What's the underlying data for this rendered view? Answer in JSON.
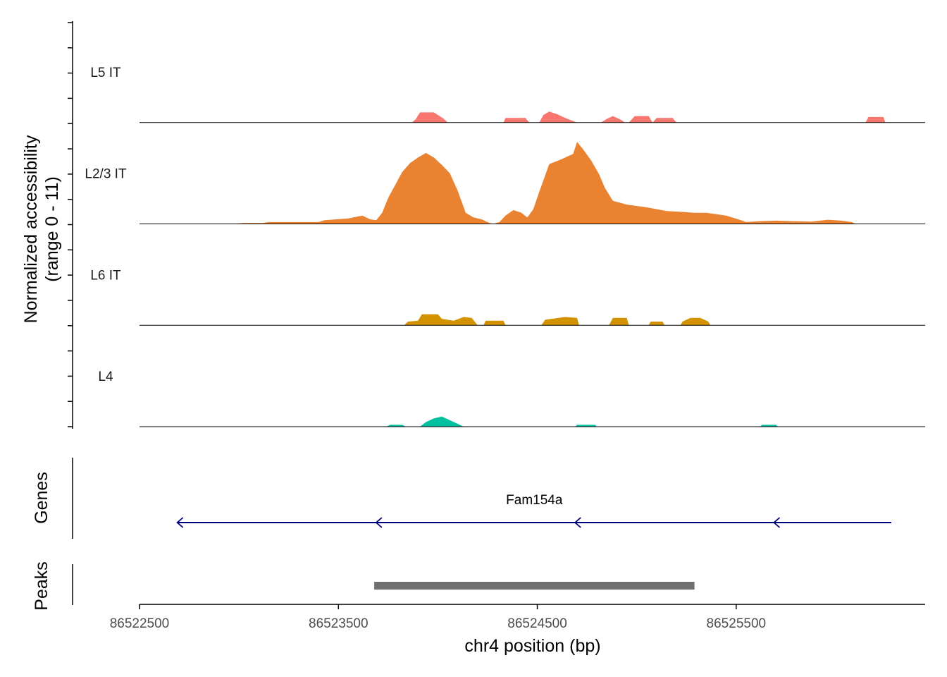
{
  "chart_data": {
    "type": "area",
    "y_axis_title_line1": "Normalized accessibility",
    "y_axis_title_line2": "(range 0 - 11)",
    "ylim": [
      0,
      11
    ],
    "x_axis_title": "chr4 position (bp)",
    "xlim": [
      86522500,
      86526450
    ],
    "x_ticks": [
      86522500,
      86523500,
      86524500,
      86525500
    ],
    "x_tick_labels": [
      "86522500",
      "86523500",
      "86524500",
      "86525500"
    ],
    "tracks": [
      {
        "name": "L5 IT",
        "color": "#F8766D",
        "points": [
          [
            86523870,
            0
          ],
          [
            86523890,
            0.4
          ],
          [
            86523910,
            1.1
          ],
          [
            86523980,
            1.1
          ],
          [
            86524030,
            0.4
          ],
          [
            86524050,
            0
          ],
          [
            86524330,
            0
          ],
          [
            86524340,
            0.5
          ],
          [
            86524440,
            0.5
          ],
          [
            86524460,
            0
          ],
          [
            86524510,
            0
          ],
          [
            86524530,
            0.8
          ],
          [
            86524560,
            1.2
          ],
          [
            86524600,
            0.9
          ],
          [
            86524640,
            0.5
          ],
          [
            86524700,
            0
          ],
          [
            86524820,
            0
          ],
          [
            86524850,
            0.4
          ],
          [
            86524880,
            0.7
          ],
          [
            86524920,
            0.3
          ],
          [
            86524940,
            0
          ],
          [
            86524960,
            0
          ],
          [
            86524990,
            0.7
          ],
          [
            86525060,
            0.7
          ],
          [
            86525080,
            0
          ],
          [
            86525080,
            0
          ],
          [
            86525100,
            0.5
          ],
          [
            86525180,
            0.5
          ],
          [
            86525200,
            0
          ],
          [
            86526150,
            0
          ],
          [
            86526165,
            0.6
          ],
          [
            86526240,
            0.6
          ],
          [
            86526250,
            0
          ]
        ]
      },
      {
        "name": "L2/3 IT",
        "color": "#EA8331",
        "points": [
          [
            86522970,
            0
          ],
          [
            86523020,
            0.1
          ],
          [
            86523120,
            0.1
          ],
          [
            86523150,
            0.2
          ],
          [
            86523400,
            0.2
          ],
          [
            86523430,
            0.4
          ],
          [
            86523550,
            0.6
          ],
          [
            86523620,
            0.9
          ],
          [
            86523660,
            0.5
          ],
          [
            86523690,
            0.4
          ],
          [
            86523720,
            1.2
          ],
          [
            86523750,
            2.8
          ],
          [
            86523780,
            4.0
          ],
          [
            86523820,
            5.6
          ],
          [
            86523860,
            6.6
          ],
          [
            86523900,
            7.2
          ],
          [
            86523940,
            7.7
          ],
          [
            86523980,
            7.2
          ],
          [
            86524020,
            6.4
          ],
          [
            86524060,
            5.5
          ],
          [
            86524100,
            3.6
          ],
          [
            86524140,
            1.2
          ],
          [
            86524180,
            0.7
          ],
          [
            86524220,
            0.5
          ],
          [
            86524260,
            0.1
          ],
          [
            86524280,
            0
          ],
          [
            86524310,
            0.2
          ],
          [
            86524340,
            0.9
          ],
          [
            86524380,
            1.5
          ],
          [
            86524420,
            1.2
          ],
          [
            86524450,
            0.7
          ],
          [
            86524480,
            1.6
          ],
          [
            86524510,
            3.5
          ],
          [
            86524560,
            6.5
          ],
          [
            86524620,
            7.0
          ],
          [
            86524680,
            7.6
          ],
          [
            86524700,
            8.9
          ],
          [
            86524730,
            8.1
          ],
          [
            86524770,
            6.9
          ],
          [
            86524810,
            5.4
          ],
          [
            86524840,
            3.9
          ],
          [
            86524880,
            2.5
          ],
          [
            86524950,
            2.1
          ],
          [
            86525050,
            1.8
          ],
          [
            86525150,
            1.4
          ],
          [
            86525230,
            1.3
          ],
          [
            86525290,
            1.2
          ],
          [
            86525350,
            1.2
          ],
          [
            86525450,
            0.9
          ],
          [
            86525510,
            0.5
          ],
          [
            86525550,
            0.2
          ],
          [
            86525620,
            0.3
          ],
          [
            86525700,
            0.35
          ],
          [
            86525780,
            0.3
          ],
          [
            86525880,
            0.25
          ],
          [
            86525960,
            0.45
          ],
          [
            86526030,
            0.35
          ],
          [
            86526080,
            0.2
          ],
          [
            86526100,
            0
          ]
        ]
      },
      {
        "name": "L6 IT",
        "color": "#D39200",
        "points": [
          [
            86523830,
            0
          ],
          [
            86523850,
            0.4
          ],
          [
            86523900,
            0.5
          ],
          [
            86523920,
            1.2
          ],
          [
            86524000,
            1.2
          ],
          [
            86524020,
            0.7
          ],
          [
            86524080,
            0.5
          ],
          [
            86524130,
            0.9
          ],
          [
            86524170,
            0.8
          ],
          [
            86524200,
            0
          ],
          [
            86524230,
            0
          ],
          [
            86524240,
            0.5
          ],
          [
            86524330,
            0.5
          ],
          [
            86524340,
            0
          ],
          [
            86524520,
            0
          ],
          [
            86524540,
            0.6
          ],
          [
            86524640,
            0.9
          ],
          [
            86524700,
            0.8
          ],
          [
            86524710,
            0
          ],
          [
            86524860,
            0
          ],
          [
            86524880,
            0.8
          ],
          [
            86524950,
            0.8
          ],
          [
            86524960,
            0
          ],
          [
            86525060,
            0
          ],
          [
            86525070,
            0.4
          ],
          [
            86525130,
            0.4
          ],
          [
            86525140,
            0
          ],
          [
            86525220,
            0
          ],
          [
            86525230,
            0.4
          ],
          [
            86525270,
            0.8
          ],
          [
            86525320,
            0.8
          ],
          [
            86525360,
            0.4
          ],
          [
            86525370,
            0
          ]
        ]
      },
      {
        "name": "L4",
        "color": "#00C19F",
        "points": [
          [
            86523740,
            0
          ],
          [
            86523760,
            0.2
          ],
          [
            86523820,
            0.2
          ],
          [
            86523840,
            0
          ],
          [
            86523910,
            0
          ],
          [
            86523940,
            0.5
          ],
          [
            86523980,
            0.9
          ],
          [
            86524020,
            1.1
          ],
          [
            86524060,
            0.7
          ],
          [
            86524110,
            0.2
          ],
          [
            86524130,
            0
          ],
          [
            86524690,
            0
          ],
          [
            86524700,
            0.2
          ],
          [
            86524790,
            0.2
          ],
          [
            86524800,
            0
          ],
          [
            86525620,
            0
          ],
          [
            86525630,
            0.2
          ],
          [
            86525700,
            0.2
          ],
          [
            86525710,
            0
          ]
        ]
      }
    ]
  },
  "genes_panel": {
    "title": "Genes",
    "gene_name": "Fam154a",
    "gene_color": "#00007F",
    "gene_start": 86522690,
    "gene_end": 86526280,
    "strand": "-",
    "arrow_positions": [
      86522690,
      86523690,
      86524690,
      86525690
    ]
  },
  "peaks_panel": {
    "title": "Peaks",
    "color": "#707070",
    "peaks": [
      [
        86523680,
        86525290
      ]
    ]
  }
}
